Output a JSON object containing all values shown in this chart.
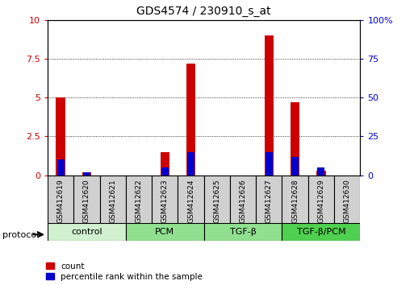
{
  "title": "GDS4574 / 230910_s_at",
  "samples": [
    "GSM412619",
    "GSM412620",
    "GSM412621",
    "GSM412622",
    "GSM412623",
    "GSM412624",
    "GSM412625",
    "GSM412626",
    "GSM412627",
    "GSM412628",
    "GSM412629",
    "GSM412630"
  ],
  "count_values": [
    5.0,
    0.2,
    0.0,
    0.0,
    1.5,
    7.2,
    0.0,
    0.0,
    9.0,
    4.7,
    0.3,
    0.0
  ],
  "percentile_values": [
    10.0,
    2.0,
    0.0,
    0.0,
    5.0,
    15.0,
    0.0,
    0.0,
    15.0,
    12.0,
    5.0,
    0.0
  ],
  "groups": [
    {
      "label": "control",
      "start": 0,
      "end": 3,
      "color": "#d0f0d0"
    },
    {
      "label": "PCM",
      "start": 3,
      "end": 6,
      "color": "#90e090"
    },
    {
      "label": "TGF-β",
      "start": 6,
      "end": 9,
      "color": "#90e090"
    },
    {
      "label": "TGF-β/PCM",
      "start": 9,
      "end": 12,
      "color": "#50d050"
    }
  ],
  "ylim_left": [
    0,
    10
  ],
  "ylim_right": [
    0,
    100
  ],
  "yticks_left": [
    0,
    2.5,
    5.0,
    7.5,
    10.0
  ],
  "yticks_right": [
    0,
    25,
    50,
    75,
    100
  ],
  "ytick_labels_left": [
    "0",
    "2.5",
    "5",
    "7.5",
    "10"
  ],
  "ytick_labels_right": [
    "0",
    "25",
    "50",
    "75",
    "100%"
  ],
  "red_color": "#cc0000",
  "blue_color": "#0000cc",
  "sample_box_color": "#d0d0d0",
  "sample_border_color": "#000000",
  "protocol_label": "protocol",
  "legend_count": "count",
  "legend_percentile": "percentile rank within the sample"
}
